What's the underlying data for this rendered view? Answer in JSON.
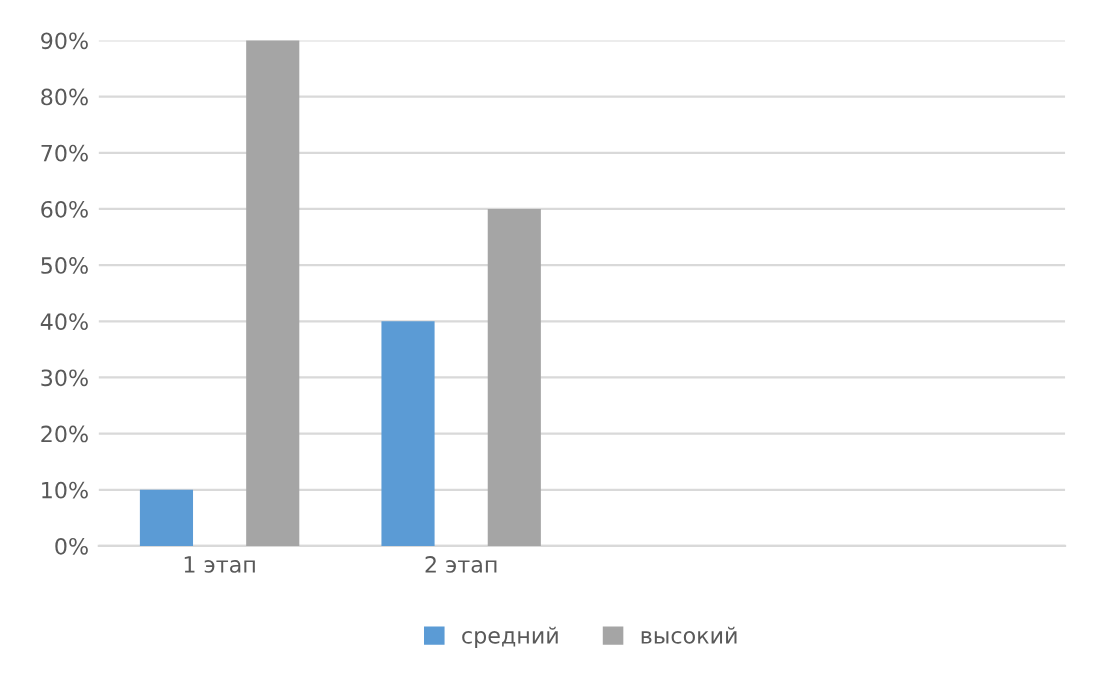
{
  "chart_data": {
    "type": "bar",
    "categories": [
      "1 этап",
      "2 этап",
      null,
      null
    ],
    "series": [
      {
        "name": "средний",
        "color": "#5b9bd5",
        "values": [
          10,
          40,
          null,
          null
        ]
      },
      {
        "name": "высокий",
        "color": "#a5a5a5",
        "values": [
          90,
          60,
          null,
          null
        ]
      }
    ],
    "ylim": [
      0,
      90
    ],
    "yticks": [
      {
        "value": 0,
        "label": "0%"
      },
      {
        "value": 10,
        "label": "10%"
      },
      {
        "value": 20,
        "label": "20%"
      },
      {
        "value": 30,
        "label": "30%"
      },
      {
        "value": 40,
        "label": "40%"
      },
      {
        "value": 50,
        "label": "50%"
      },
      {
        "value": 60,
        "label": "60%"
      },
      {
        "value": 70,
        "label": "70%"
      },
      {
        "value": 80,
        "label": "80%"
      },
      {
        "value": 90,
        "label": "90%"
      }
    ],
    "grid": "y",
    "legend": "bottom"
  }
}
